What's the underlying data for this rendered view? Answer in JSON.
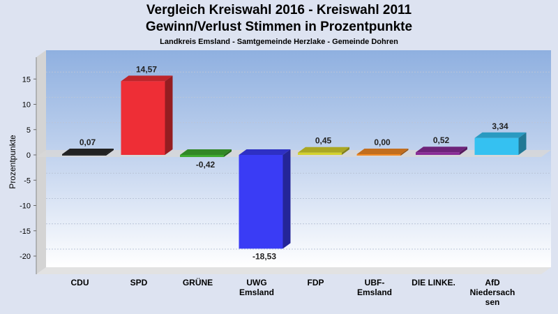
{
  "chart_data": {
    "type": "bar",
    "title": "Vergleich Kreiswahl 2016 - Kreiswahl 2011",
    "title_line2": "Gewinn/Verlust Stimmen in Prozentpunkte",
    "subtitle": "Landkreis Emsland - Samtgemeinde Herzlake - Gemeinde Dohren",
    "ylabel": "Prozentpunkte",
    "ylim": [
      -22.5,
      19
    ],
    "yticks": [
      15,
      10,
      5,
      0,
      -5,
      -10,
      -15,
      -20
    ],
    "ytick_labels": [
      "15",
      "10",
      "5",
      "0",
      "-5",
      "-10",
      "-15",
      "-20"
    ],
    "grid": true,
    "categories": [
      [
        "CDU"
      ],
      [
        "SPD"
      ],
      [
        "GRÜNE"
      ],
      [
        "UWG",
        "Emsland"
      ],
      [
        "FDP"
      ],
      [
        "UBF-",
        "Emsland"
      ],
      [
        "DIE LINKE."
      ],
      [
        "AfD",
        "Niedersach",
        "sen"
      ]
    ],
    "values": [
      0.07,
      14.57,
      -0.42,
      -18.53,
      0.45,
      0.0,
      0.52,
      3.34
    ],
    "value_labels": [
      "0,07",
      "14,57",
      "-0,42",
      "-18,53",
      "0,45",
      "0,00",
      "0,52",
      "3,34"
    ],
    "colors": [
      "#2b2b2b",
      "#ee2e36",
      "#3faa2f",
      "#3a3cf5",
      "#d4d12c",
      "#f28a25",
      "#8a2c97",
      "#35c1f1"
    ]
  }
}
